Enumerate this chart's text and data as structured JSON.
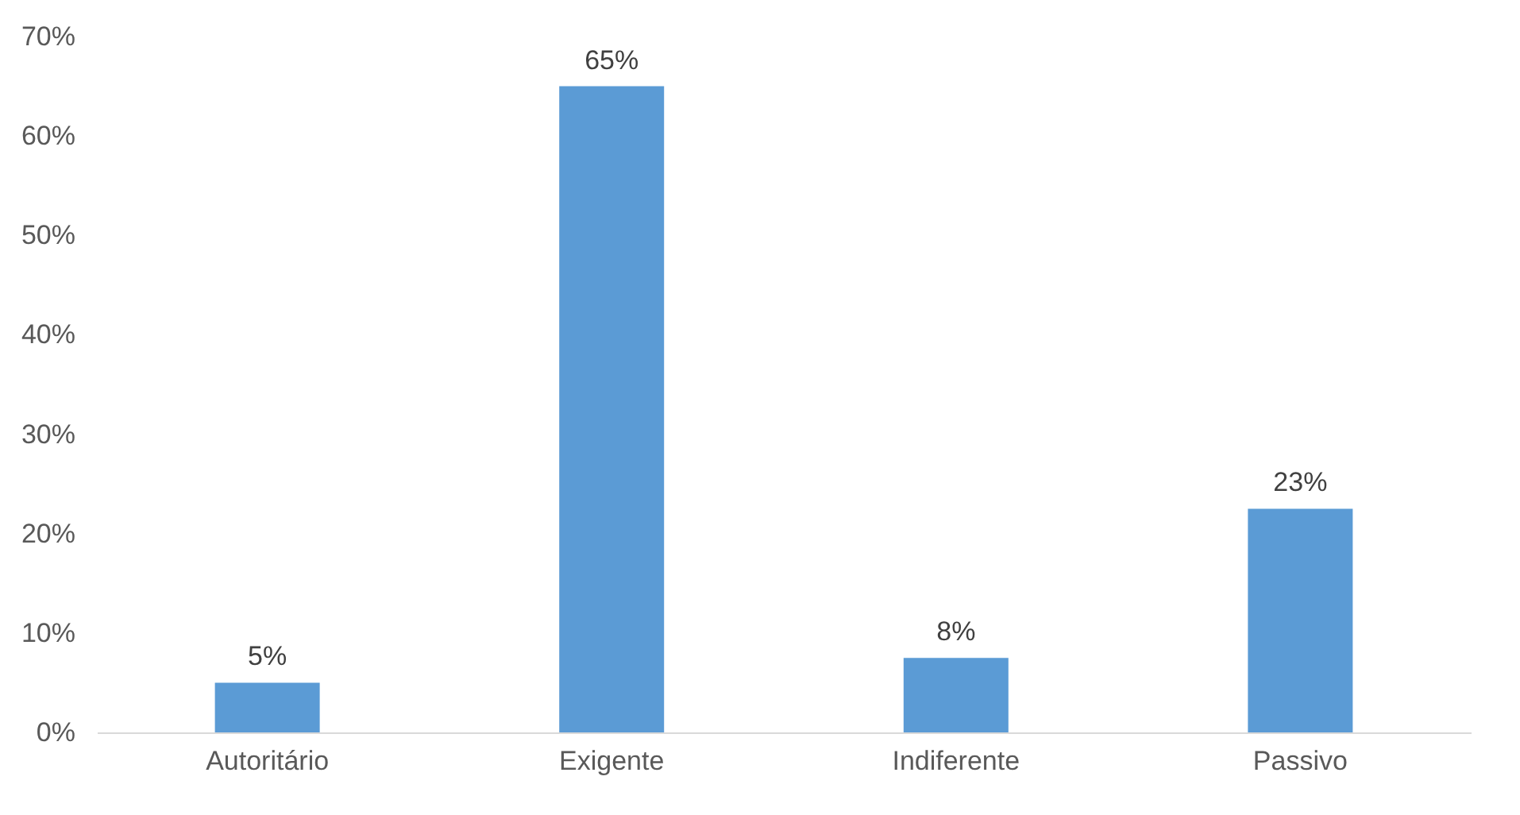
{
  "chart_data": {
    "type": "bar",
    "categories": [
      "Autoritário",
      "Exigente",
      "Indiferente",
      "Passivo"
    ],
    "values": [
      5,
      65,
      7.5,
      22.5
    ],
    "value_labels": [
      "5%",
      "65%",
      "8%",
      "23%"
    ],
    "color": "#5b9bd5",
    "ylim": [
      0,
      70
    ],
    "yticks": [
      {
        "value": 0,
        "label": "0%"
      },
      {
        "value": 10,
        "label": "10%"
      },
      {
        "value": 20,
        "label": "20%"
      },
      {
        "value": 30,
        "label": "30%"
      },
      {
        "value": 40,
        "label": "40%"
      },
      {
        "value": 50,
        "label": "50%"
      },
      {
        "value": 60,
        "label": "60%"
      },
      {
        "value": 70,
        "label": "70%"
      }
    ],
    "grid": false
  }
}
